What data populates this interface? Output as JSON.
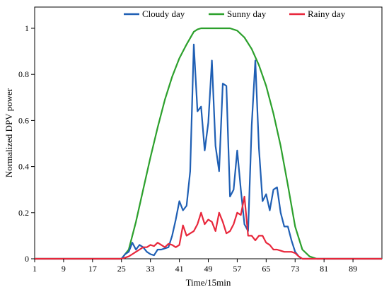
{
  "chart_data": {
    "type": "line",
    "xlabel": "Time/15min",
    "ylabel": "Normalized DPV power",
    "xlim": [
      1,
      97
    ],
    "ylim": [
      0,
      1.0
    ],
    "x_ticks": [
      1,
      9,
      17,
      25,
      33,
      41,
      49,
      57,
      65,
      73,
      81,
      89
    ],
    "y_ticks": [
      0,
      0.2,
      0.4,
      0.6,
      0.8,
      1
    ],
    "y_tick_labels": [
      "0",
      "0.2",
      "0.4",
      "0.6",
      "0.8",
      "1"
    ],
    "grid": false,
    "legend_position": "top",
    "series": [
      {
        "name": "Cloudy day",
        "color": "#1f5fb4",
        "x": [
          1,
          25,
          26,
          27,
          28,
          29,
          30,
          31,
          32,
          33,
          34,
          35,
          36,
          37,
          38,
          39,
          40,
          41,
          42,
          43,
          44,
          45,
          46,
          47,
          48,
          49,
          50,
          51,
          52,
          53,
          54,
          55,
          56,
          57,
          58,
          59,
          60,
          61,
          62,
          63,
          64,
          65,
          66,
          67,
          68,
          69,
          70,
          71,
          72,
          73,
          74,
          75,
          76,
          97
        ],
        "y": [
          0,
          0,
          0.02,
          0.03,
          0.07,
          0.04,
          0.06,
          0.05,
          0.03,
          0.02,
          0.015,
          0.04,
          0.04,
          0.045,
          0.05,
          0.1,
          0.17,
          0.25,
          0.21,
          0.23,
          0.38,
          0.93,
          0.64,
          0.66,
          0.47,
          0.59,
          0.86,
          0.49,
          0.38,
          0.76,
          0.75,
          0.27,
          0.3,
          0.47,
          0.3,
          0.15,
          0.12,
          0.58,
          0.86,
          0.48,
          0.25,
          0.28,
          0.21,
          0.3,
          0.31,
          0.2,
          0.14,
          0.14,
          0.08,
          0.03,
          0.01,
          0,
          0,
          0
        ]
      },
      {
        "name": "Sunny day",
        "color": "#2ca02c",
        "x": [
          1,
          25,
          27,
          29,
          31,
          33,
          35,
          37,
          39,
          41,
          43,
          45,
          46,
          47,
          49,
          51,
          53,
          55,
          57,
          59,
          61,
          63,
          65,
          67,
          69,
          71,
          73,
          75,
          77,
          79,
          97
        ],
        "y": [
          0,
          0,
          0.04,
          0.16,
          0.3,
          0.44,
          0.57,
          0.69,
          0.79,
          0.87,
          0.93,
          0.985,
          0.995,
          1.0,
          1.0,
          1.0,
          1.0,
          1.0,
          0.99,
          0.96,
          0.91,
          0.84,
          0.75,
          0.63,
          0.49,
          0.32,
          0.14,
          0.04,
          0.01,
          0,
          0
        ]
      },
      {
        "name": "Rainy day",
        "color": "#e8273b",
        "x": [
          1,
          25,
          26,
          27,
          28,
          29,
          30,
          31,
          32,
          33,
          34,
          35,
          36,
          37,
          38,
          39,
          40,
          41,
          42,
          43,
          44,
          45,
          46,
          47,
          48,
          49,
          50,
          51,
          52,
          53,
          54,
          55,
          56,
          57,
          58,
          59,
          60,
          61,
          62,
          63,
          64,
          65,
          66,
          67,
          68,
          69,
          70,
          71,
          72,
          73,
          74,
          75,
          97
        ],
        "y": [
          0,
          0,
          0.005,
          0.01,
          0.02,
          0.03,
          0.04,
          0.05,
          0.05,
          0.06,
          0.055,
          0.07,
          0.06,
          0.05,
          0.065,
          0.06,
          0.05,
          0.06,
          0.145,
          0.1,
          0.11,
          0.12,
          0.15,
          0.2,
          0.15,
          0.17,
          0.16,
          0.12,
          0.2,
          0.16,
          0.11,
          0.12,
          0.15,
          0.2,
          0.19,
          0.27,
          0.1,
          0.1,
          0.08,
          0.1,
          0.1,
          0.07,
          0.06,
          0.04,
          0.04,
          0.035,
          0.03,
          0.03,
          0.03,
          0.025,
          0.01,
          0,
          0
        ]
      }
    ]
  }
}
